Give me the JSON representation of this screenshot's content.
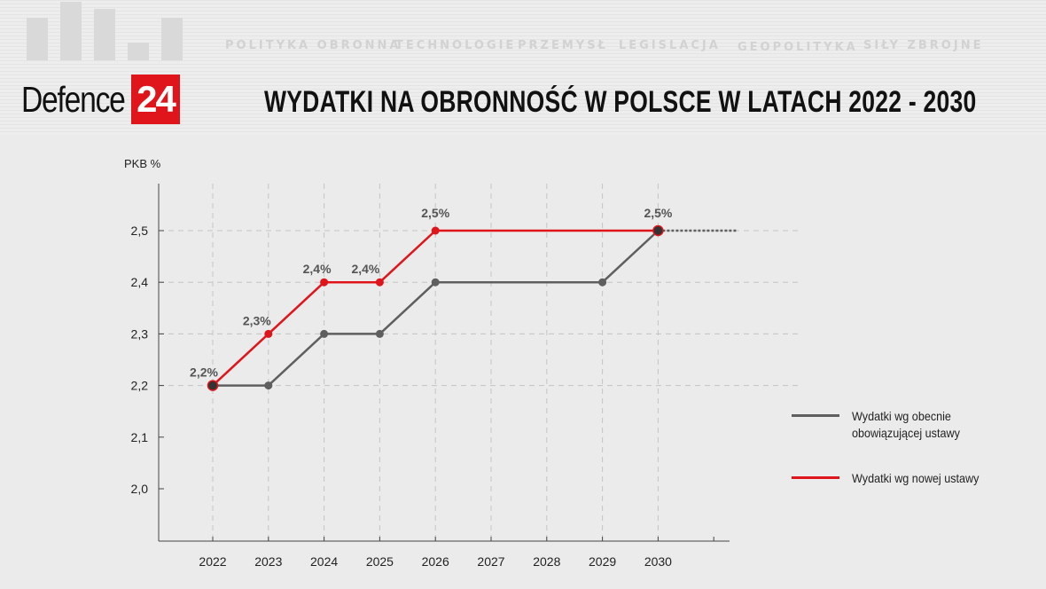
{
  "header": {
    "logo_text": "Defence",
    "logo_number": "24",
    "nav_items": [
      "POLITYKA OBRONNA",
      "TECHNOLOGIE",
      "PRZEMYSŁ",
      "LEGISLACJA",
      "GEOPOLITYKA",
      "SIŁY ZBROJNE"
    ]
  },
  "chart_data": {
    "type": "line",
    "title": "WYDATKI NA OBRONNOŚĆ W POLSCE W LATACH 2022 - 2030",
    "ylabel": "PKB %",
    "xlabel": "",
    "categories": [
      "2022",
      "2023",
      "2024",
      "2025",
      "2026",
      "2027",
      "2028",
      "2029",
      "2030"
    ],
    "y_ticks": [
      "2,0",
      "2,1",
      "2,2",
      "2,3",
      "2,4",
      "2,5"
    ],
    "ylim": [
      1.9,
      2.6
    ],
    "grid": true,
    "legend_position": "right",
    "series": [
      {
        "name": "Wydatki wg obecnie obowiązującej ustawy",
        "color": "#5f5f5f",
        "points": [
          [
            2022,
            2.2
          ],
          [
            2023,
            2.2
          ],
          [
            2024,
            2.3
          ],
          [
            2025,
            2.3
          ],
          [
            2026,
            2.4
          ],
          [
            2029,
            2.4
          ],
          [
            2030,
            2.5
          ]
        ],
        "extends_dotted_after_last": true
      },
      {
        "name": "Wydatki wg nowej ustawy",
        "color": "#e0141b",
        "points": [
          [
            2022,
            2.2
          ],
          [
            2023,
            2.3
          ],
          [
            2024,
            2.4
          ],
          [
            2025,
            2.4
          ],
          [
            2026,
            2.5
          ],
          [
            2030,
            2.5
          ]
        ],
        "data_labels": [
          {
            "x": 2022,
            "y": 2.2,
            "text": "2,2%"
          },
          {
            "x": 2023,
            "y": 2.3,
            "text": "2,3%"
          },
          {
            "x": 2024,
            "y": 2.4,
            "text": "2,4%"
          },
          {
            "x": 2025,
            "y": 2.4,
            "text": "2,4%"
          },
          {
            "x": 2026,
            "y": 2.5,
            "text": "2,5%"
          },
          {
            "x": 2030,
            "y": 2.5,
            "text": "2,5%"
          }
        ]
      }
    ]
  }
}
